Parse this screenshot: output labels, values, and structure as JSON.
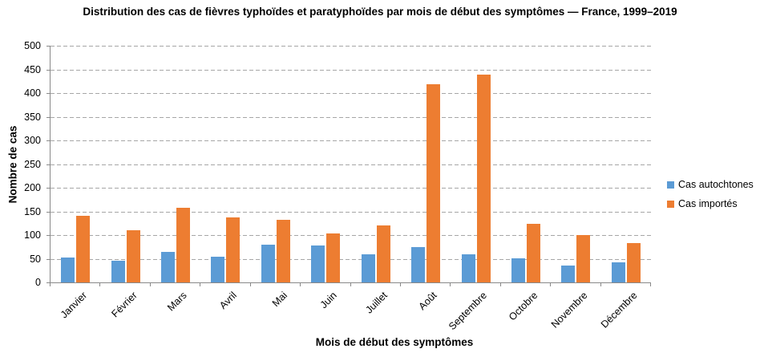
{
  "chart_data": {
    "type": "bar",
    "title": "Distribution des cas de fièvres typhoïdes et paratyphoïdes par mois de début des symptômes — France, 1999–2019",
    "xlabel": "Mois de début des symptômes",
    "ylabel": "Nombre de cas",
    "ylim": [
      0,
      500
    ],
    "ytick_step": 50,
    "grid": "horizontal-dashed",
    "legend_position": "right",
    "categories": [
      "Janvier",
      "Février",
      "Mars",
      "Avril",
      "Mai",
      "Juin",
      "Juillet",
      "Août",
      "Septembre",
      "Octobre",
      "Novembre",
      "Décembre"
    ],
    "series": [
      {
        "name": "Cas autochtones",
        "color": "#5B9BD5",
        "values": [
          52,
          45,
          65,
          55,
          80,
          78,
          60,
          75,
          60,
          51,
          36,
          42
        ]
      },
      {
        "name": "Cas importés",
        "color": "#ED7D31",
        "values": [
          140,
          110,
          158,
          138,
          133,
          103,
          120,
          418,
          439,
          124,
          100,
          83
        ]
      }
    ],
    "colors": {
      "gridline": "#A6A6A6",
      "axis": "#898989",
      "text": "#000000"
    }
  }
}
